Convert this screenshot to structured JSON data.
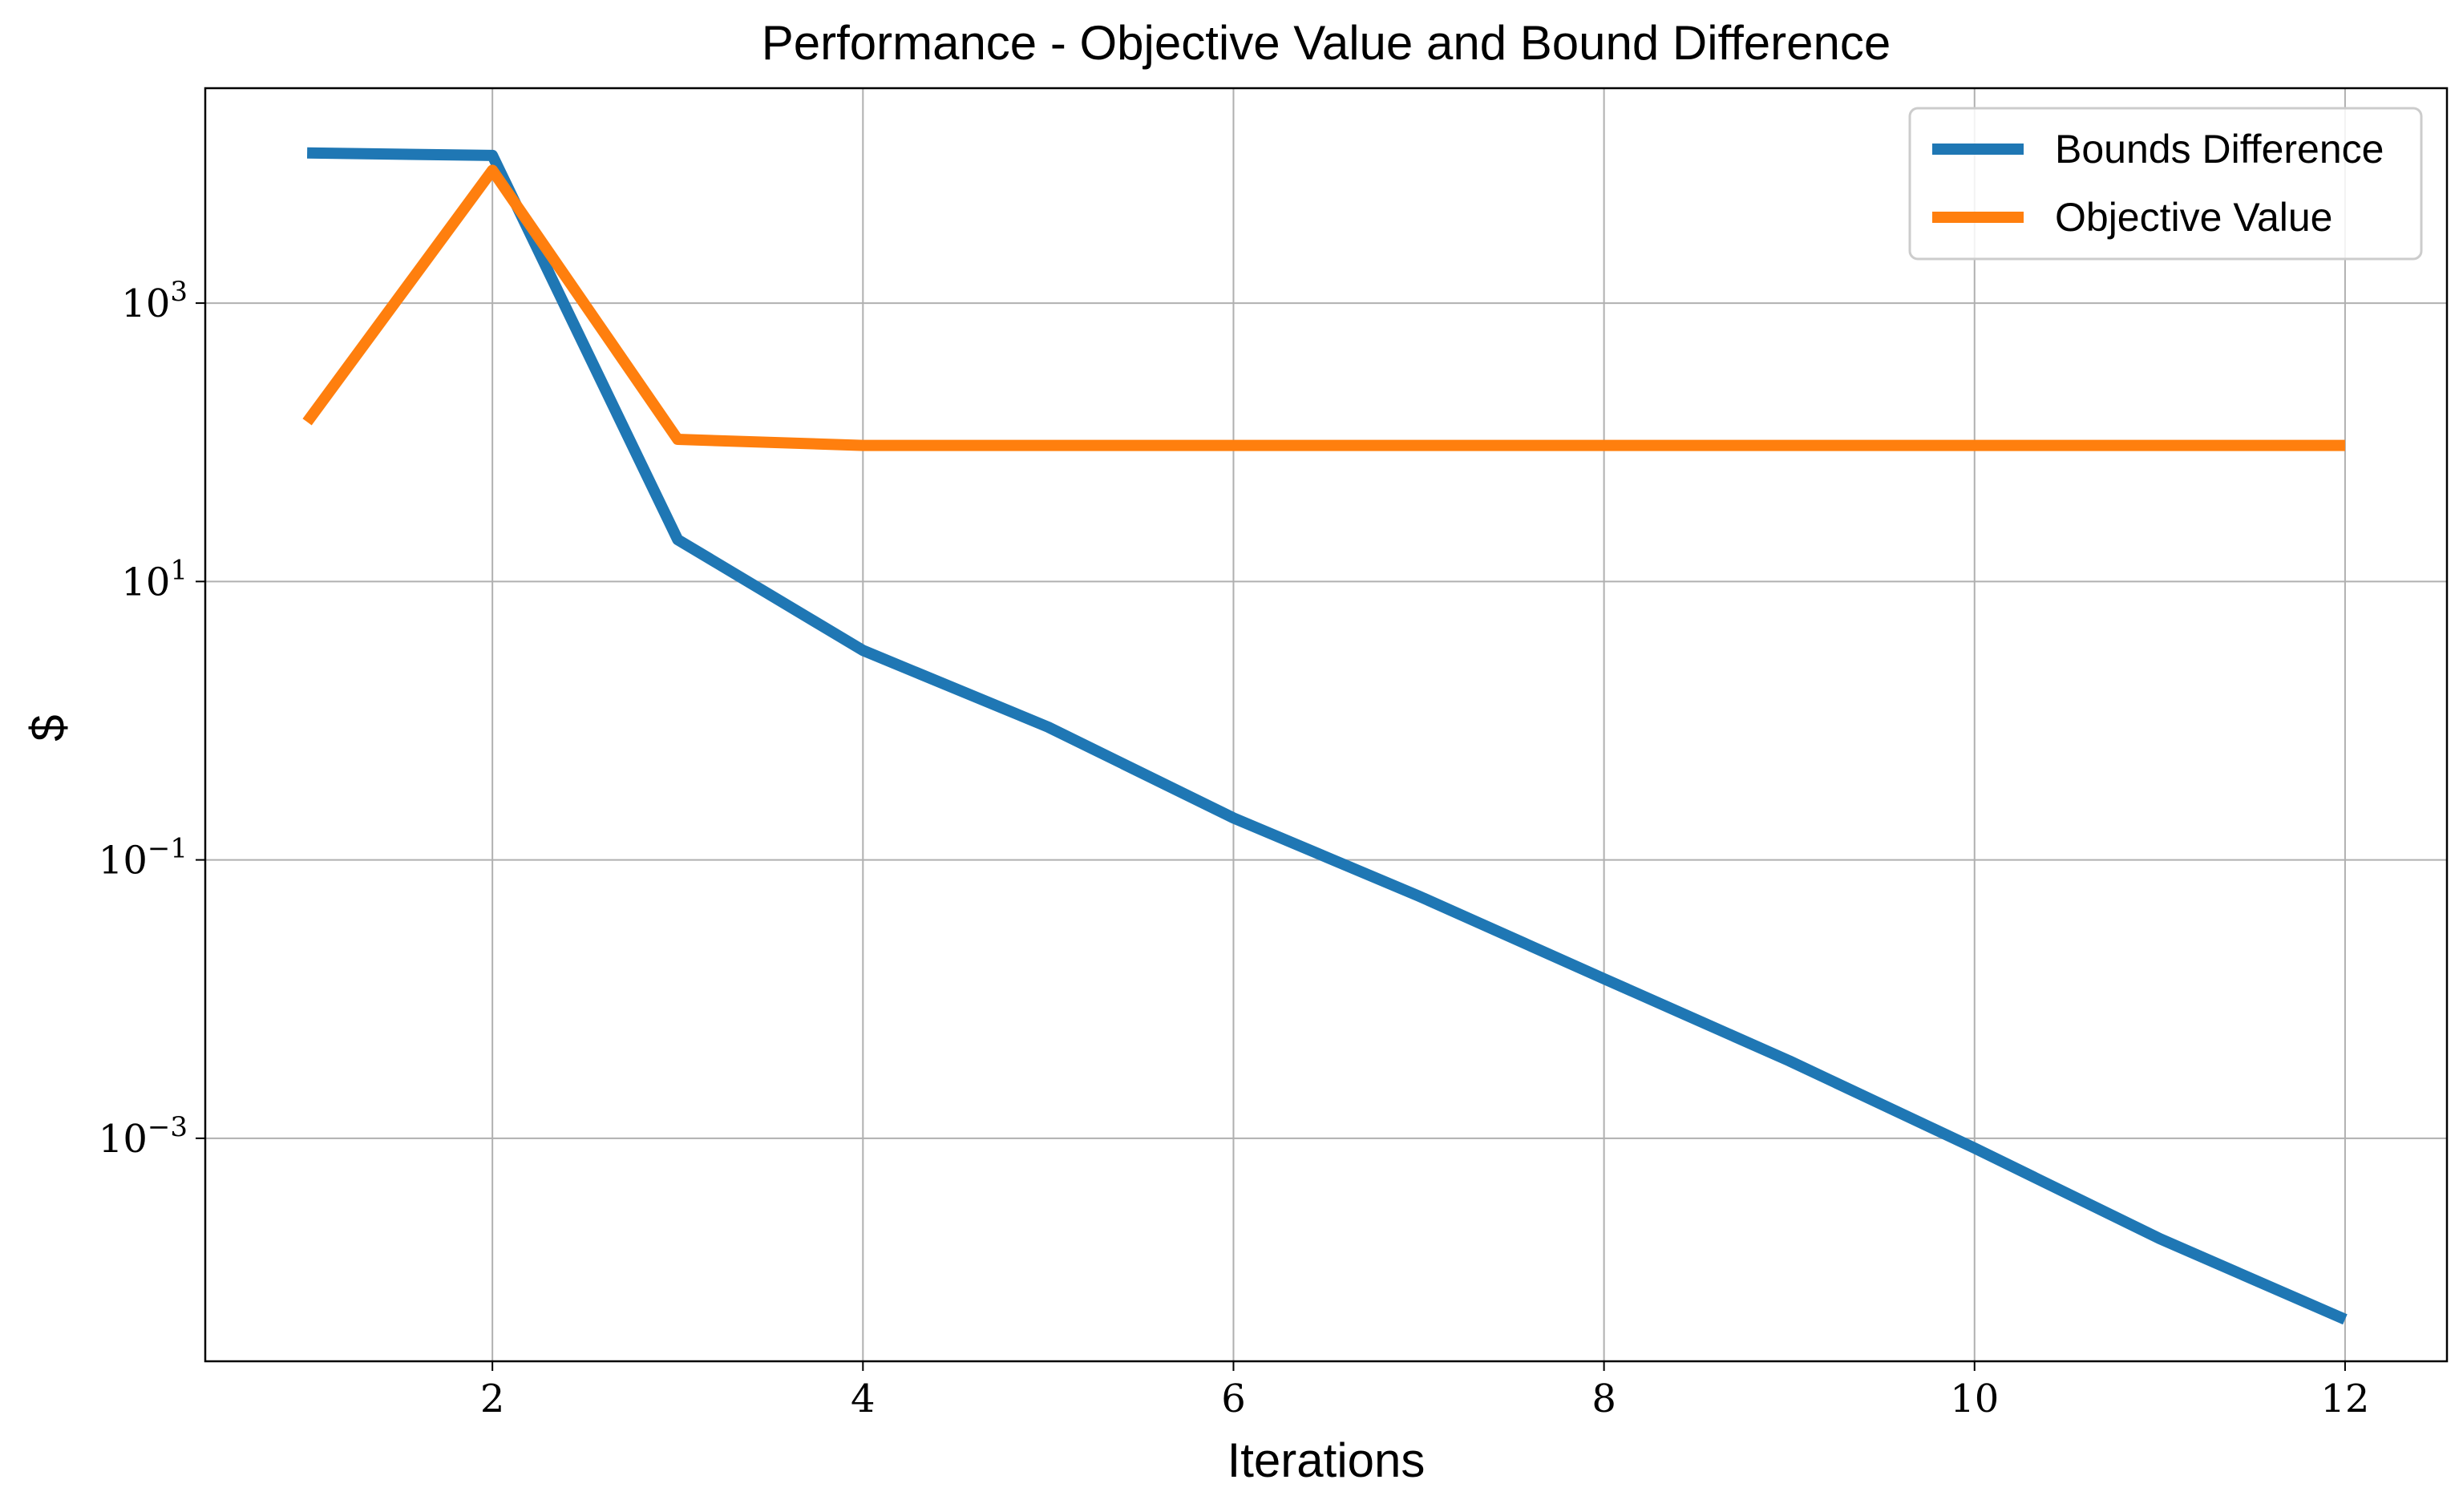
{
  "chart_data": {
    "type": "line",
    "title": "Performance - Objective Value and Bound Difference",
    "xlabel": "Iterations",
    "ylabel": "$",
    "yscale": "log",
    "xlim": [
      0.45,
      12.55
    ],
    "ylim": [
      2.5e-05,
      35000
    ],
    "xticks": [
      2,
      4,
      6,
      8,
      10,
      12
    ],
    "yticks": [
      {
        "value": 1000,
        "base": "10",
        "exp": "3"
      },
      {
        "value": 10,
        "base": "10",
        "exp": "1"
      },
      {
        "value": 0.1,
        "base": "10",
        "exp": "−1"
      },
      {
        "value": 0.001,
        "base": "10",
        "exp": "−3"
      }
    ],
    "grid": true,
    "legend_position": "top-right",
    "x": [
      1,
      2,
      3,
      4,
      5,
      6,
      7,
      8,
      9,
      10,
      11,
      12
    ],
    "series": [
      {
        "name": "Bounds Difference",
        "color": "#1f77b4",
        "values": [
          12000,
          11500,
          20,
          3.2,
          0.9,
          0.2,
          0.055,
          0.014,
          0.0036,
          0.00085,
          0.00019,
          5e-05
        ]
      },
      {
        "name": "Objective Value",
        "color": "#ff7f0e",
        "values": [
          140,
          9000,
          105,
          95,
          95,
          95,
          95,
          95,
          95,
          95,
          95,
          95
        ]
      }
    ]
  }
}
